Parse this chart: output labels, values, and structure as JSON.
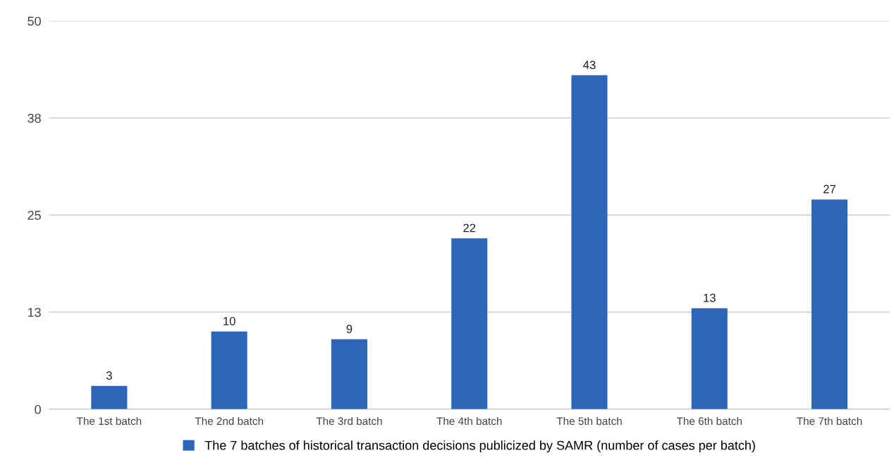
{
  "chart_data": {
    "type": "bar",
    "categories": [
      "The 1st batch",
      "The 2nd batch",
      "The 3rd batch",
      "The 4th batch",
      "The 5th batch",
      "The 6th batch",
      "The 7th batch"
    ],
    "series": [
      {
        "name": "The 7 batches of historical transaction decisions publicized by SAMR (number of cases per batch)",
        "color": "#2d66b8",
        "values": [
          3,
          10,
          9,
          22,
          43,
          13,
          27
        ]
      }
    ],
    "ylim": [
      0,
      50
    ],
    "yticks": [
      0,
      {
        "value": 12.5,
        "label": "13"
      },
      25,
      {
        "value": 37.5,
        "label": "38"
      },
      50
    ],
    "grid": "y",
    "legend": "bottom",
    "data_labels": true
  }
}
